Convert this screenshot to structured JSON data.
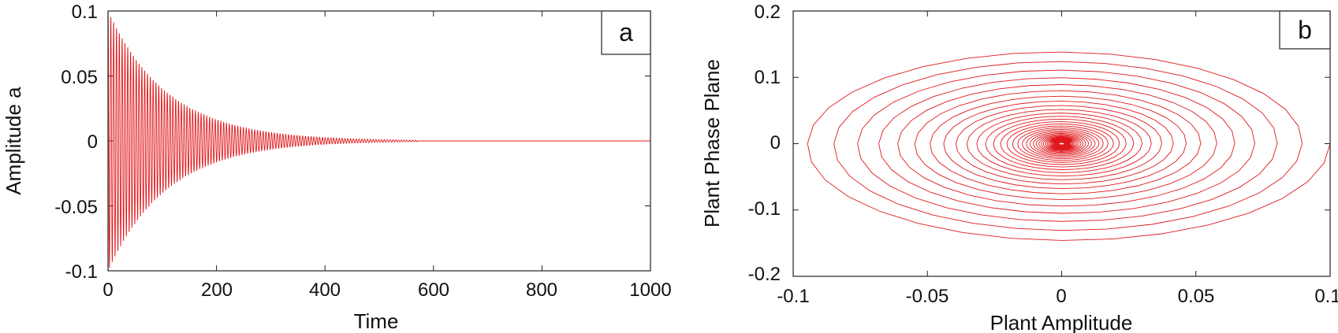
{
  "chart_data": [
    {
      "type": "line",
      "panel_label": "a",
      "xlabel": "Time",
      "ylabel": "Amplitude a",
      "xlim": [
        0,
        1000
      ],
      "ylim": [
        -0.1,
        0.1
      ],
      "x_ticks": [
        "0",
        "200",
        "400",
        "600",
        "800",
        "1000"
      ],
      "y_ticks": [
        "0.1",
        "0.05",
        "0",
        "-0.05",
        "-0.1"
      ],
      "grid": false,
      "line_color": "#e0181c",
      "series": [
        {
          "envelope_initial_amplitude": 0.1,
          "envelope_decay_time_constant": 110,
          "oscillation_period": 5.2,
          "visible_oscillation_until": 570,
          "x_start": 0,
          "x_end": 1000
        }
      ]
    },
    {
      "type": "line",
      "panel_label": "b",
      "xlabel": "Plant Amplitude",
      "ylabel": "Plant Phase Plane",
      "xlim": [
        -0.1,
        0.1
      ],
      "ylim": [
        -0.2,
        0.2
      ],
      "x_ticks": [
        "-0.1",
        "-0.05",
        "0",
        "0.05",
        "0.1"
      ],
      "y_ticks": [
        "0.2",
        "0.1",
        "0",
        "-0.1",
        "-0.2"
      ],
      "grid": false,
      "line_color": "#e0181c",
      "series": [
        {
          "shape": "decaying spiral",
          "start_point": [
            0.1,
            0
          ],
          "center": [
            0,
            0
          ],
          "max_abs_x": 0.1,
          "max_abs_y": 0.15,
          "number_of_loops": 42,
          "spiral_end_radius_x": 0.001
        }
      ]
    }
  ]
}
